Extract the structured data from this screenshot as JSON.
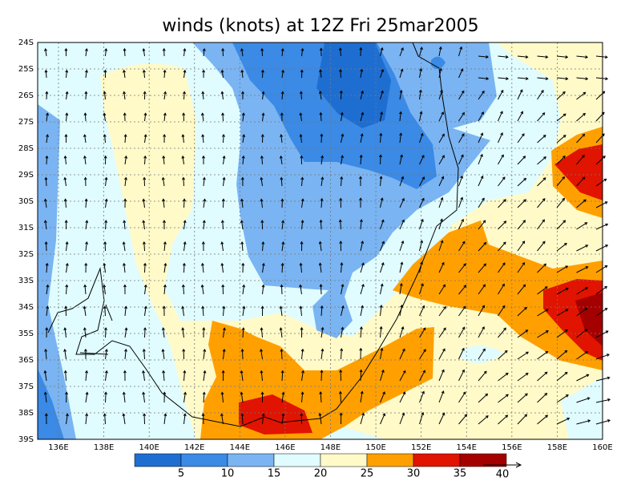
{
  "title": "winds (knots) at 12Z Fri 25mar2005",
  "lat_labels": [
    "24S",
    "25S",
    "26S",
    "27S",
    "28S",
    "29S",
    "30S",
    "31S",
    "32S",
    "33S",
    "34S",
    "35S",
    "36S",
    "37S",
    "38S",
    "39S"
  ],
  "lon_labels": [
    "136E",
    "138E",
    "140E",
    "142E",
    "144E",
    "146E",
    "148E",
    "150E",
    "152E",
    "154E",
    "156E",
    "158E",
    "160E"
  ],
  "colorbar": {
    "labels": [
      "5",
      "10",
      "15",
      "20",
      "25",
      "30",
      "35"
    ],
    "colors": [
      "#1e6ed2",
      "#3a8ae6",
      "#7ab4f2",
      "#e0fcff",
      "#fffac8",
      "#ffa000",
      "#e01400",
      "#a50000"
    ]
  },
  "vector_reference": {
    "label": "40"
  }
}
